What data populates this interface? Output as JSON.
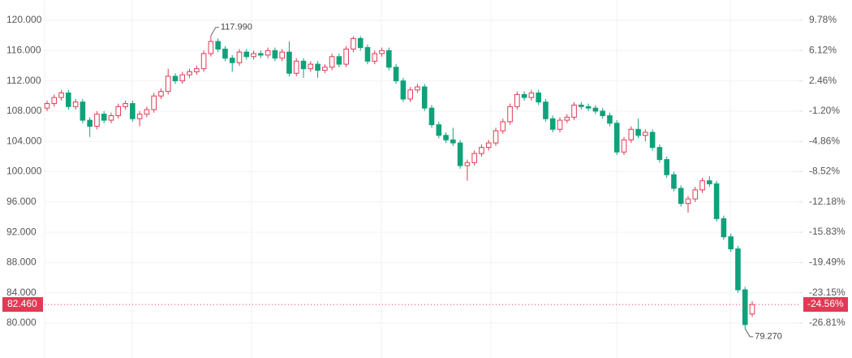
{
  "chart_data": {
    "type": "candlestick",
    "open": [
      108.4,
      109.0,
      109.8,
      110.4,
      108.6,
      109.2,
      106.8,
      106.0,
      107.6,
      106.8,
      107.4,
      108.6,
      109.0,
      107.0,
      107.6,
      108.2,
      110.0,
      110.6,
      112.6,
      112.0,
      112.8,
      113.2,
      113.6,
      115.6,
      117.2,
      116.2,
      115.0,
      114.4,
      115.8,
      115.2,
      115.6,
      115.4,
      116.0,
      115.0,
      115.8,
      113.0,
      114.6,
      113.6,
      114.2,
      113.4,
      113.8,
      115.2,
      114.2,
      116.2,
      117.6,
      116.4,
      114.6,
      115.6,
      116.0,
      113.8,
      112.0,
      109.6,
      110.8,
      111.2,
      108.4,
      106.2,
      104.8,
      104.2,
      103.8,
      100.8,
      101.2,
      102.4,
      103.2,
      103.8,
      105.4,
      106.6,
      108.6,
      110.2,
      109.8,
      110.4,
      109.2,
      107.0,
      105.6,
      106.8,
      107.2,
      108.8,
      108.6,
      108.4,
      108.0,
      107.4,
      106.4,
      102.6,
      104.2,
      105.6,
      104.8,
      105.2,
      103.2,
      101.6,
      99.6,
      97.8,
      95.8,
      96.4,
      97.6,
      98.8,
      98.4,
      93.8,
      91.4,
      89.8,
      84.4,
      81.2
    ],
    "high": [
      109.4,
      110.2,
      110.8,
      110.8,
      109.6,
      109.6,
      107.2,
      108.0,
      108.0,
      107.8,
      109.0,
      109.4,
      109.4,
      108.0,
      108.6,
      110.4,
      111.0,
      113.6,
      113.0,
      113.2,
      113.6,
      114.0,
      116.0,
      117.99,
      117.6,
      116.6,
      115.4,
      116.2,
      116.2,
      116.0,
      116.0,
      116.4,
      116.4,
      116.2,
      117.2,
      115.0,
      115.0,
      114.6,
      114.6,
      114.2,
      115.6,
      115.6,
      116.6,
      117.9,
      117.9,
      116.8,
      116.0,
      116.4,
      116.4,
      114.2,
      112.4,
      111.2,
      111.6,
      111.6,
      108.8,
      106.6,
      105.2,
      105.8,
      104.2,
      101.6,
      102.8,
      103.6,
      104.2,
      105.8,
      107.0,
      109.0,
      110.6,
      110.6,
      110.8,
      110.8,
      109.6,
      107.4,
      107.2,
      107.6,
      109.2,
      109.2,
      109.0,
      108.8,
      108.4,
      107.8,
      106.8,
      104.6,
      106.0,
      107.0,
      105.6,
      105.6,
      103.6,
      102.0,
      100.0,
      98.2,
      96.8,
      98.0,
      99.2,
      99.4,
      98.8,
      94.2,
      91.8,
      90.2,
      84.8,
      82.9
    ],
    "low": [
      108.0,
      108.6,
      109.4,
      108.2,
      108.2,
      106.4,
      104.6,
      105.6,
      106.4,
      106.4,
      107.0,
      108.2,
      106.6,
      106.0,
      107.2,
      107.8,
      109.6,
      110.2,
      111.6,
      111.6,
      112.4,
      112.8,
      113.2,
      115.2,
      115.8,
      114.6,
      113.2,
      114.0,
      114.8,
      114.8,
      115.0,
      115.0,
      114.6,
      114.6,
      112.6,
      112.6,
      112.4,
      113.2,
      112.4,
      113.0,
      113.4,
      113.8,
      113.8,
      115.8,
      116.0,
      114.2,
      114.2,
      115.2,
      113.4,
      111.6,
      109.2,
      109.2,
      110.4,
      108.0,
      105.8,
      104.4,
      103.8,
      103.4,
      100.4,
      98.8,
      100.8,
      102.0,
      102.8,
      103.4,
      105.0,
      106.2,
      108.2,
      109.4,
      109.4,
      108.8,
      106.6,
      105.2,
      105.2,
      106.4,
      106.8,
      108.2,
      108.0,
      107.6,
      107.0,
      106.0,
      102.2,
      102.2,
      103.8,
      104.4,
      104.0,
      102.8,
      101.2,
      99.2,
      97.4,
      95.4,
      94.6,
      96.0,
      97.2,
      98.0,
      93.4,
      91.0,
      89.4,
      84.0,
      79.27,
      80.8
    ],
    "close": [
      109.0,
      109.8,
      110.4,
      108.6,
      109.2,
      106.8,
      106.0,
      107.6,
      106.8,
      107.4,
      108.6,
      109.0,
      107.0,
      107.6,
      108.2,
      110.0,
      110.6,
      112.6,
      112.0,
      112.8,
      113.2,
      113.6,
      115.6,
      117.2,
      116.2,
      115.0,
      114.4,
      115.8,
      115.2,
      115.6,
      115.4,
      116.0,
      115.0,
      115.8,
      113.0,
      114.6,
      113.6,
      114.2,
      113.4,
      113.8,
      115.2,
      114.2,
      116.2,
      117.6,
      116.4,
      114.6,
      115.6,
      116.0,
      113.8,
      112.0,
      109.6,
      110.8,
      111.2,
      108.4,
      106.2,
      104.8,
      104.2,
      103.8,
      100.8,
      101.2,
      102.4,
      103.2,
      103.8,
      105.4,
      106.6,
      108.6,
      110.2,
      109.8,
      110.4,
      109.2,
      107.0,
      105.6,
      106.8,
      107.2,
      108.8,
      108.6,
      108.4,
      108.0,
      107.4,
      106.4,
      102.6,
      104.2,
      105.6,
      104.8,
      105.2,
      103.2,
      101.6,
      99.6,
      97.8,
      95.8,
      96.4,
      97.6,
      98.8,
      98.4,
      93.8,
      91.4,
      89.8,
      84.4,
      79.8,
      82.46
    ],
    "up_color": "#e03a55",
    "down_color": "#0fa27a",
    "ylim": [
      75.39,
      122.68
    ],
    "yticks": [
      {
        "value": 120,
        "label": "120.000"
      },
      {
        "value": 116,
        "label": "116.000"
      },
      {
        "value": 112,
        "label": "112.000"
      },
      {
        "value": 108,
        "label": "108.000"
      },
      {
        "value": 104,
        "label": "104.000"
      },
      {
        "value": 100,
        "label": "100.000"
      },
      {
        "value": 96,
        "label": "96.000"
      },
      {
        "value": 92,
        "label": "92.000"
      },
      {
        "value": 88,
        "label": "88.000"
      },
      {
        "value": 84,
        "label": "84.000"
      },
      {
        "value": 80,
        "label": "80.000"
      }
    ],
    "y2lim": [
      -31.03,
      12.23
    ],
    "y2ticks": [
      {
        "value": 9.78,
        "label": "9.78%"
      },
      {
        "value": 6.12,
        "label": "6.12%"
      },
      {
        "value": 2.46,
        "label": "2.46%"
      },
      {
        "value": -1.2,
        "label": "-1.20%"
      },
      {
        "value": -4.86,
        "label": "-4.86%"
      },
      {
        "value": -8.52,
        "label": "-8.52%"
      },
      {
        "value": -12.18,
        "label": "-12.18%"
      },
      {
        "value": -15.83,
        "label": "-15.83%"
      },
      {
        "value": -19.49,
        "label": "-19.49%"
      },
      {
        "value": -23.15,
        "label": "-23.15%"
      },
      {
        "value": -26.81,
        "label": "-26.81%"
      }
    ],
    "last_price": {
      "value": 82.46,
      "label": "82.460"
    },
    "last_change": {
      "value": -24.56,
      "label": "-24.56%"
    },
    "annotations": [
      {
        "value": 117.99,
        "label": "117.990"
      },
      {
        "value": 79.27,
        "label": "79.270"
      }
    ],
    "grid": true
  }
}
